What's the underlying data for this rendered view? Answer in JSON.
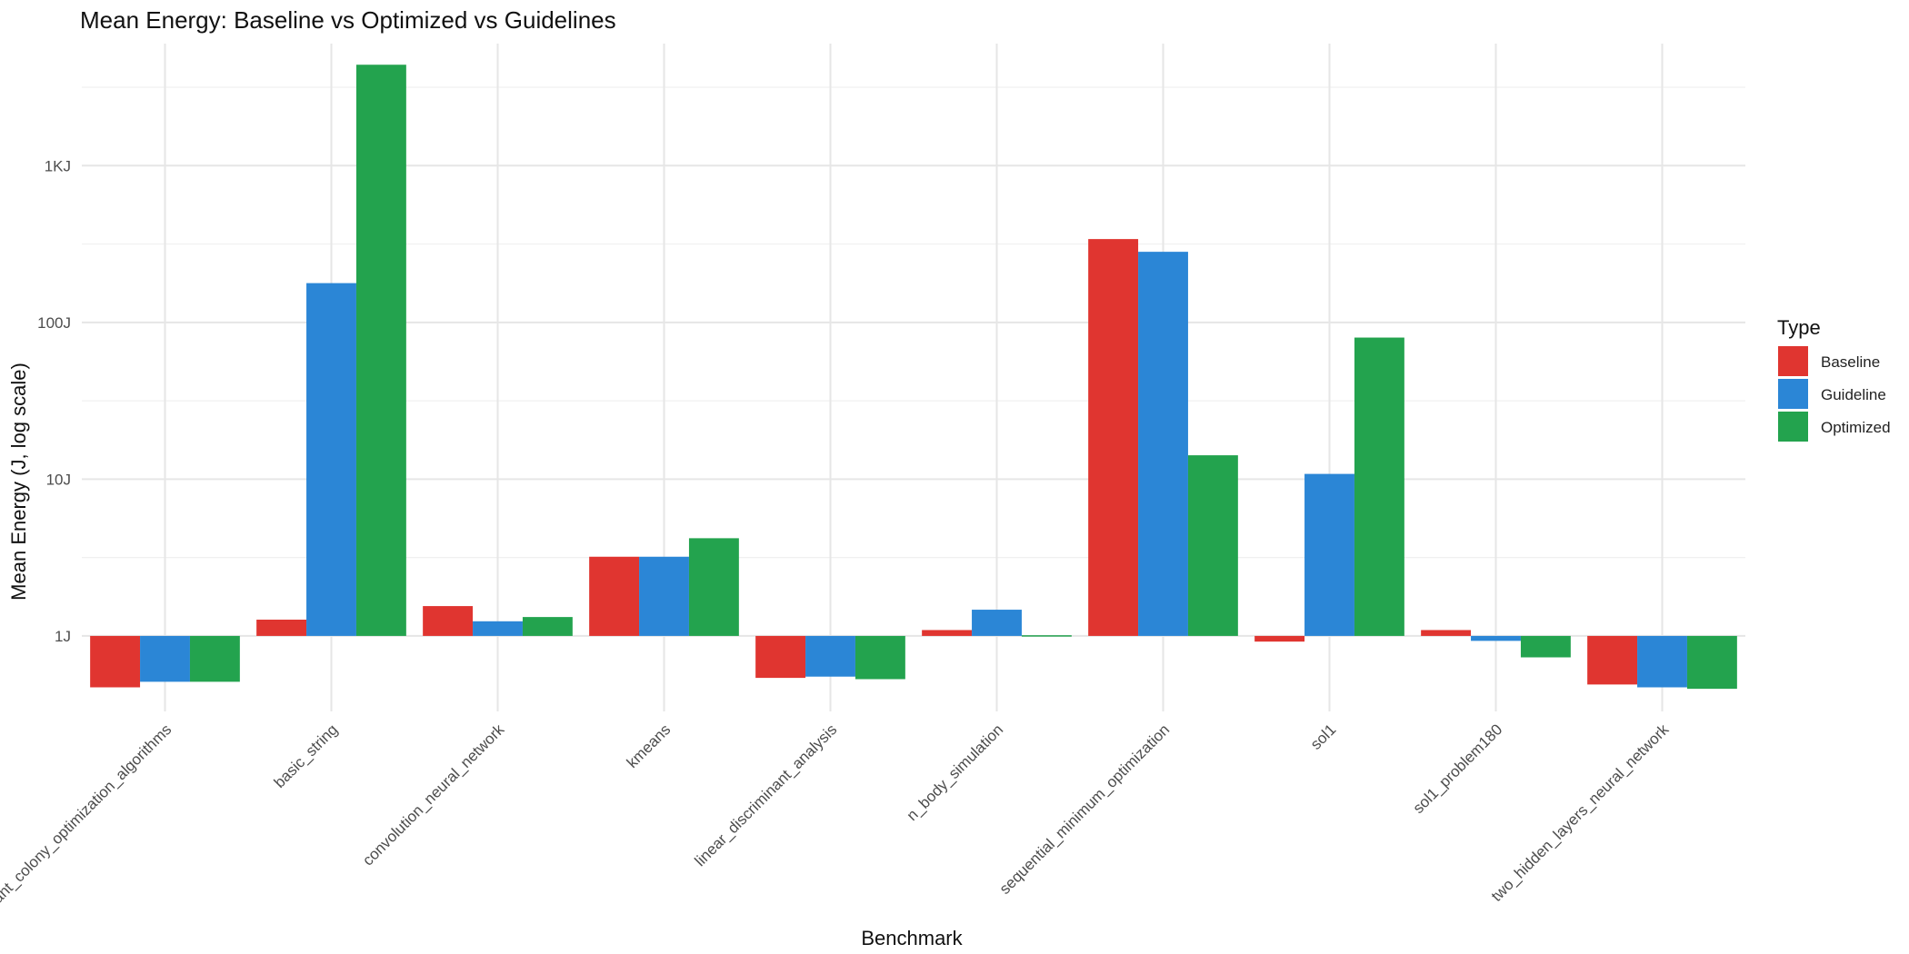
{
  "chart_data": {
    "type": "bar",
    "title": "Mean Energy: Baseline vs Optimized vs Guidelines",
    "xlabel": "Benchmark",
    "ylabel": "Mean Energy (J, log scale)",
    "y_scale": "log10",
    "ylim": [
      0.33,
      6000
    ],
    "y_ticks": [
      {
        "value": 1,
        "label": "1J"
      },
      {
        "value": 10,
        "label": "10J"
      },
      {
        "value": 100,
        "label": "100J"
      },
      {
        "value": 1000,
        "label": "1KJ"
      }
    ],
    "bar_baseline": 1,
    "grid": true,
    "legend_position": "right",
    "legend_title": "Type",
    "categories": [
      "ant_colony_optimization_algorithms",
      "basic_string",
      "convolution_neural_network",
      "kmeans",
      "linear_discriminant_analysis",
      "n_body_simulation",
      "sequential_minimum_optimization",
      "sol1",
      "sol1_problem180",
      "two_hidden_layers_neural_network"
    ],
    "series": [
      {
        "name": "Baseline",
        "color": "#E03530",
        "values": [
          0.47,
          1.27,
          1.55,
          3.2,
          0.54,
          1.09,
          340,
          0.92,
          1.09,
          0.49
        ]
      },
      {
        "name": "Guideline",
        "color": "#2B86D6",
        "values": [
          0.51,
          178,
          1.24,
          3.2,
          0.55,
          1.47,
          282,
          10.8,
          0.93,
          0.47
        ]
      },
      {
        "name": "Optimized",
        "color": "#23A34E",
        "values": [
          0.51,
          4400,
          1.32,
          4.2,
          0.53,
          1.01,
          14.2,
          80,
          0.73,
          0.46
        ]
      }
    ]
  }
}
